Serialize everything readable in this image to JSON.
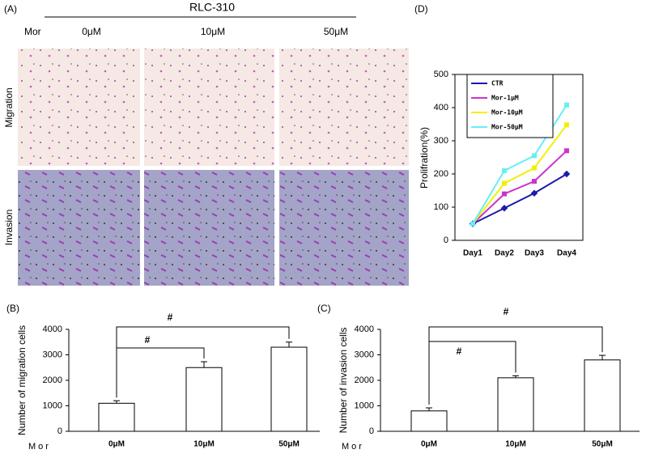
{
  "panel_a": {
    "label": "(A)",
    "title": "RLC-310",
    "treatment": "Mor",
    "columns": [
      "0μM",
      "10μM",
      "50μM"
    ],
    "rows": [
      "Migration",
      "Invasion"
    ]
  },
  "chart_data": [
    {
      "type": "bar",
      "label": "(B)",
      "x_label": "Mor",
      "y_label": "Number of migration cells",
      "categories": [
        "0μM",
        "10μM",
        "50μM"
      ],
      "values": [
        1100,
        2500,
        3300
      ],
      "errors": [
        100,
        230,
        200
      ],
      "color": "#ffffff",
      "ylim": [
        0,
        4000
      ],
      "yticks": [
        0,
        1000,
        2000,
        3000,
        4000
      ],
      "annotations": [
        "#",
        "#"
      ]
    },
    {
      "type": "bar",
      "label": "(C)",
      "x_label": "Mor",
      "y_label": "Number of invasion cells",
      "categories": [
        "0μM",
        "10μM",
        "50μM"
      ],
      "values": [
        800,
        2100,
        2800
      ],
      "errors": [
        120,
        80,
        180
      ],
      "color": "#ffffff",
      "ylim": [
        0,
        4000
      ],
      "yticks": [
        0,
        1000,
        2000,
        3000,
        4000
      ],
      "annotations": [
        "#",
        "#"
      ]
    },
    {
      "type": "line",
      "label": "(D)",
      "y_label": "Prolifration(%)",
      "categories": [
        "Day1",
        "Day2",
        "Day3",
        "Day4"
      ],
      "series": [
        {
          "name": "CTR",
          "color": "#1c1ca8",
          "values": [
            50,
            97,
            142,
            200
          ]
        },
        {
          "name": "Mor-1μM",
          "color": "#cc33cc",
          "values": [
            50,
            140,
            178,
            270
          ]
        },
        {
          "name": "Mor-10μM",
          "color": "#f0f000",
          "values": [
            50,
            172,
            218,
            348
          ]
        },
        {
          "name": "Mor-50μM",
          "color": "#66f0f0",
          "values": [
            50,
            210,
            255,
            408
          ]
        }
      ],
      "ylim": [
        0,
        500
      ],
      "yticks": [
        0,
        100,
        200,
        300,
        400,
        500
      ],
      "legend": "upper-left"
    }
  ]
}
